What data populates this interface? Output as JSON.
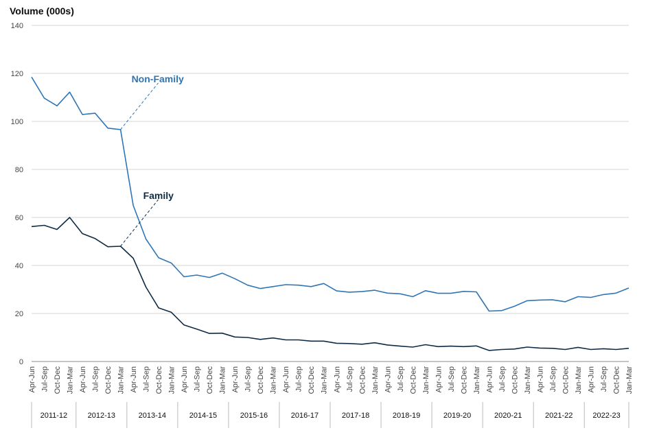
{
  "chart_data": {
    "type": "line",
    "ylabel": "Volume (000s)",
    "xlabel": "",
    "ylim": [
      0,
      140
    ],
    "yticks": [
      0,
      20,
      40,
      60,
      80,
      100,
      120,
      140
    ],
    "grid": true,
    "quarters": [
      "Apr-Jun",
      "Jul-Sep",
      "Oct-Dec",
      "Jan-Mar"
    ],
    "years": [
      "2011-12",
      "2012-13",
      "2013-14",
      "2014-15",
      "2015-16",
      "2016-17",
      "2017-18",
      "2018-19",
      "2019-20",
      "2020-21",
      "2021-22",
      "2022-23"
    ],
    "categories": [
      "Apr-Jun",
      "Jul-Sep",
      "Oct-Dec",
      "Jan-Mar",
      "Apr-Jun",
      "Jul-Sep",
      "Oct-Dec",
      "Jan-Mar",
      "Apr-Jun",
      "Jul-Sep",
      "Oct-Dec",
      "Jan-Mar",
      "Apr-Jun",
      "Jul-Sep",
      "Oct-Dec",
      "Jan-Mar",
      "Apr-Jun",
      "Jul-Sep",
      "Oct-Dec",
      "Jan-Mar",
      "Apr-Jun",
      "Jul-Sep",
      "Oct-Dec",
      "Jan-Mar",
      "Apr-Jun",
      "Jul-Sep",
      "Oct-Dec",
      "Jan-Mar",
      "Apr-Jun",
      "Jul-Sep",
      "Oct-Dec",
      "Jan-Mar",
      "Apr-Jun",
      "Jul-Sep",
      "Oct-Dec",
      "Jan-Mar",
      "Apr-Jun",
      "Jul-Sep",
      "Oct-Dec",
      "Jan-Mar",
      "Apr-Jun",
      "Jul-Sep",
      "Oct-Dec",
      "Jan-Mar",
      "Apr-Jun",
      "Jul-Sep",
      "Oct-Dec",
      "Jan-Mar"
    ],
    "series": [
      {
        "name": "Non-Family",
        "color": "#2e75b6",
        "label_anchor_index": 7,
        "values": [
          118.5,
          109.7,
          106.5,
          112.2,
          102.9,
          103.4,
          97.2,
          96.6,
          65.0,
          51.0,
          43.2,
          41.0,
          35.3,
          36.0,
          35.0,
          36.8,
          34.5,
          31.8,
          30.4,
          31.2,
          32.0,
          31.8,
          31.2,
          32.5,
          29.4,
          28.9,
          29.1,
          29.7,
          28.5,
          28.2,
          27.0,
          29.5,
          28.4,
          28.4,
          29.2,
          29.0,
          21.0,
          21.2,
          23.0,
          25.3,
          25.6,
          25.7,
          24.9,
          27.0,
          26.7,
          27.9,
          28.5,
          30.6
        ]
      },
      {
        "name": "Family",
        "color": "#0d2b45",
        "label_anchor_index": 7,
        "values": [
          56.2,
          56.7,
          55.0,
          60.0,
          53.3,
          51.2,
          47.8,
          48.0,
          43.0,
          31.0,
          22.3,
          20.5,
          15.2,
          13.5,
          11.7,
          11.8,
          10.2,
          10.0,
          9.2,
          9.8,
          9.0,
          9.0,
          8.5,
          8.5,
          7.6,
          7.5,
          7.2,
          7.8,
          6.9,
          6.4,
          6.0,
          7.0,
          6.2,
          6.4,
          6.2,
          6.5,
          4.6,
          5.0,
          5.2,
          6.0,
          5.6,
          5.5,
          5.0,
          5.9,
          5.0,
          5.3,
          5.0,
          5.5
        ]
      }
    ]
  }
}
